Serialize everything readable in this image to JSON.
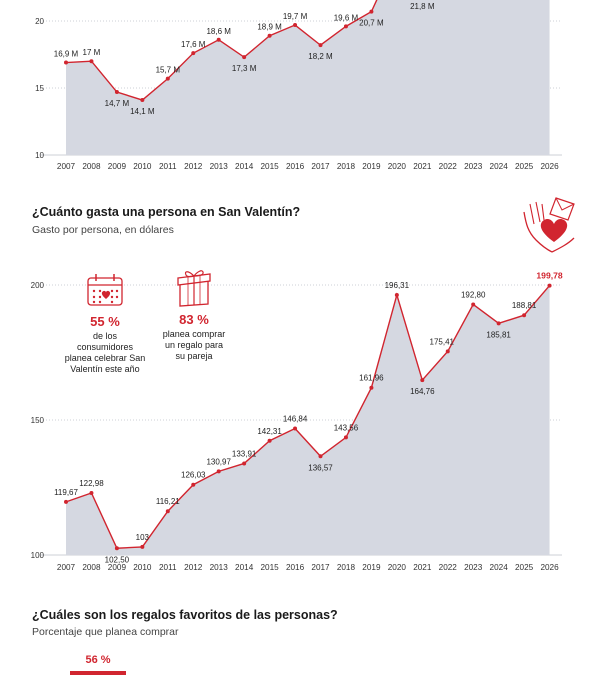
{
  "colors": {
    "accent": "#d1252f",
    "area_fill": "#d5d8e1",
    "grid": "#9aa0ae",
    "axis_text": "#333333"
  },
  "top_chart": {
    "y_tick_labels": [
      "20",
      "15",
      "10"
    ]
  },
  "spend_section": {
    "title": "¿Cuánto gasta una persona en San Valentín?",
    "subtitle": "Gasto por persona, en dólares",
    "hand_heart_icon": "hand-holding-heart-icon",
    "y_tick_labels": [
      "200",
      "150",
      "100"
    ]
  },
  "stats": [
    {
      "value": "55 %",
      "line1": "de los consumidores",
      "line2": "planea celebrar San",
      "line3": "Valentín este año",
      "icon": "calendar-heart-icon"
    },
    {
      "value": "83 %",
      "line1": "planea comprar",
      "line2": "un regalo para",
      "line3": "su pareja",
      "icon": "gift-box-icon"
    }
  ],
  "gifts_section": {
    "title": "¿Cuáles son los regalos favoritos de las personas?",
    "subtitle": "Porcentaje que planea comprar",
    "first_value_label": "56 %",
    "first_value": 56
  },
  "chart_data": [
    {
      "type": "area",
      "title": "",
      "xlabel": "",
      "ylabel": "",
      "x": [
        "2007",
        "2008",
        "2009",
        "2010",
        "2011",
        "2012",
        "2013",
        "2014",
        "2015",
        "2016",
        "2017",
        "2018",
        "2019",
        "2020",
        "2021",
        "2022",
        "2023",
        "2024",
        "2025",
        "2026"
      ],
      "visible_points": [
        {
          "x": "2007",
          "value": 16.9,
          "label": "16,9 M"
        },
        {
          "x": "2008",
          "value": 17.0,
          "label": "17 M"
        },
        {
          "x": "2009",
          "value": 14.7,
          "label": "14,7 M"
        },
        {
          "x": "2010",
          "value": 14.1,
          "label": "14,1 M"
        },
        {
          "x": "2011",
          "value": 15.7,
          "label": "15,7 M"
        },
        {
          "x": "2012",
          "value": 17.6,
          "label": "17,6 M"
        },
        {
          "x": "2013",
          "value": 18.6,
          "label": "18,6 M"
        },
        {
          "x": "2014",
          "value": 17.3,
          "label": "17,3 M"
        },
        {
          "x": "2015",
          "value": 18.9,
          "label": "18,9 M"
        },
        {
          "x": "2016",
          "value": 19.7,
          "label": "19,7 M"
        },
        {
          "x": "2017",
          "value": 18.2,
          "label": "18,2 M"
        },
        {
          "x": "2018",
          "value": 19.6,
          "label": "19,6 M"
        },
        {
          "x": "2019",
          "value": 20.7,
          "label": "20,7 M"
        },
        {
          "x": "2021",
          "value": 21.8,
          "label": "21,8 M"
        }
      ],
      "yticks": [
        10,
        15,
        20
      ],
      "ylim": [
        10,
        21.3
      ],
      "grid": true,
      "note_on_clipping": false
    },
    {
      "type": "area",
      "title": "¿Cuánto gasta una persona en San Valentín?",
      "subtitle": "Gasto por persona, en dólares",
      "xlabel": "",
      "ylabel": "",
      "x": [
        "2007",
        "2008",
        "2009",
        "2010",
        "2011",
        "2012",
        "2013",
        "2014",
        "2015",
        "2016",
        "2017",
        "2018",
        "2019",
        "2020",
        "2021",
        "2022",
        "2023",
        "2024",
        "2025",
        "2026"
      ],
      "values": [
        119.67,
        122.98,
        102.5,
        103,
        116.21,
        126.03,
        130.97,
        133.91,
        142.31,
        146.84,
        136.57,
        143.56,
        161.96,
        196.31,
        164.76,
        175.41,
        192.8,
        185.81,
        188.81,
        199.78
      ],
      "value_labels": [
        "119,67",
        "122,98",
        "102,50",
        "103",
        "116,21",
        "126,03",
        "130,97",
        "133,91",
        "142,31",
        "146,84",
        "136,57",
        "143,56",
        "161,96",
        "196,31",
        "164,76",
        "175,41",
        "192,80",
        "185,81",
        "188,81",
        "199,78"
      ],
      "yticks": [
        100,
        150,
        200
      ],
      "ylim": [
        100,
        210
      ],
      "grid": true
    }
  ]
}
